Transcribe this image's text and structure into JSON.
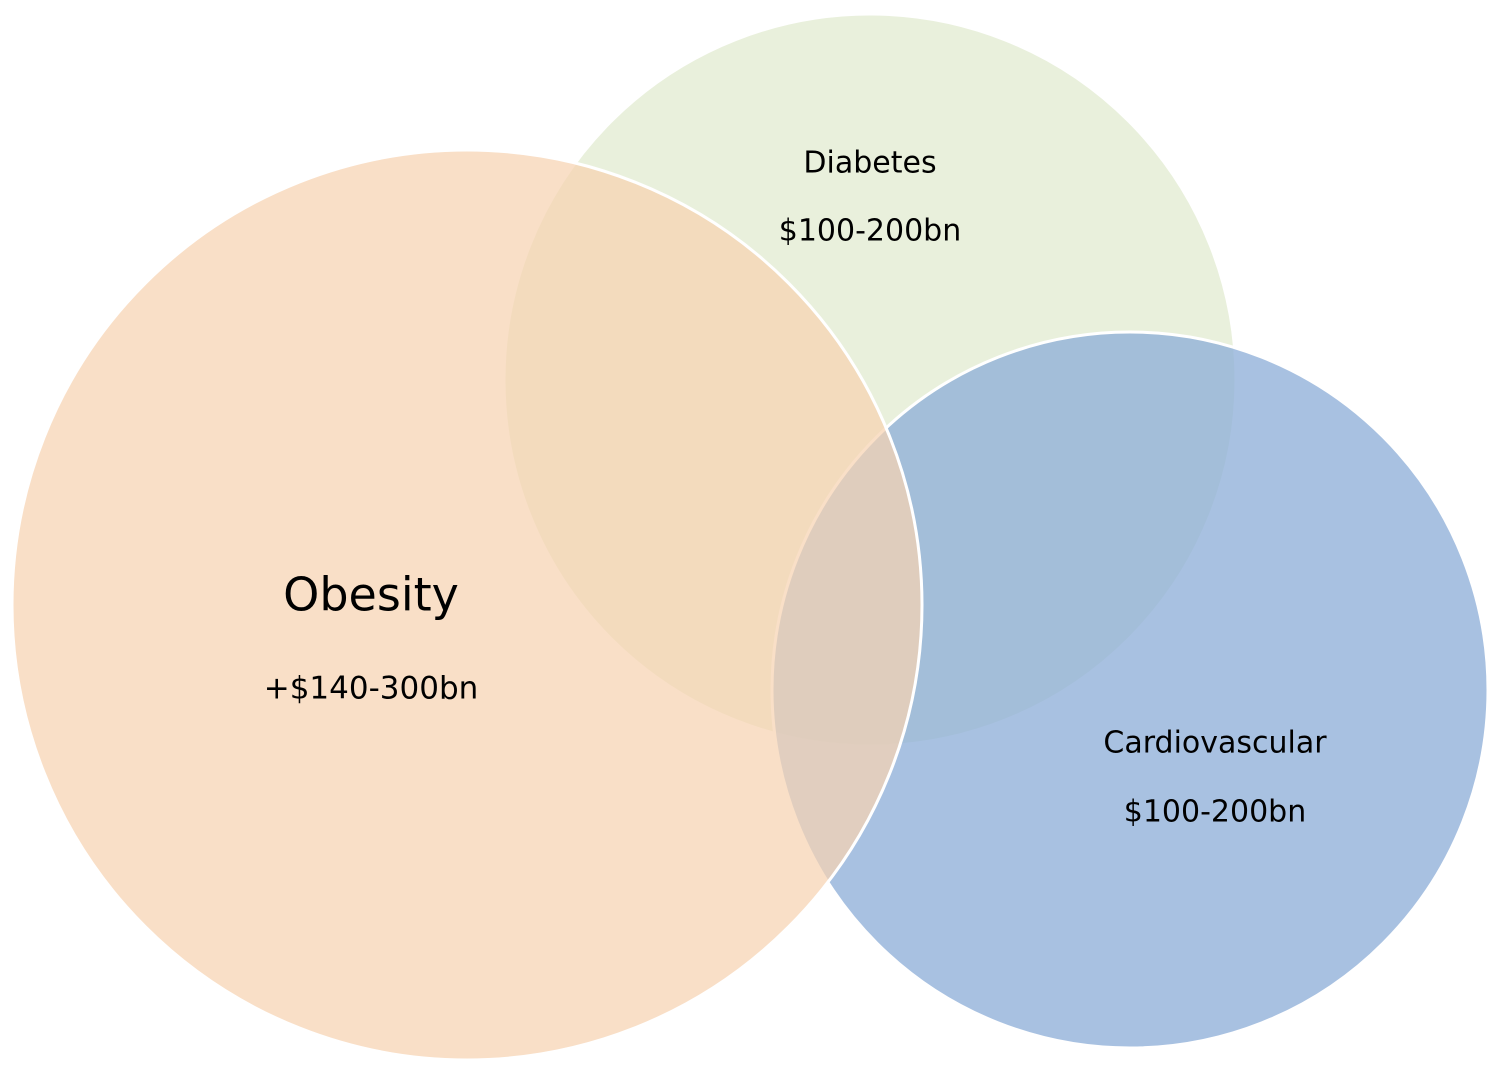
{
  "nodes": [
    {
      "label": "Diabetes",
      "value": "$100-200bn"
    },
    {
      "label": "Obesity",
      "value": "+$140-300bn"
    },
    {
      "label": "Cardiovascular",
      "value": "$100-200bn"
    }
  ]
}
